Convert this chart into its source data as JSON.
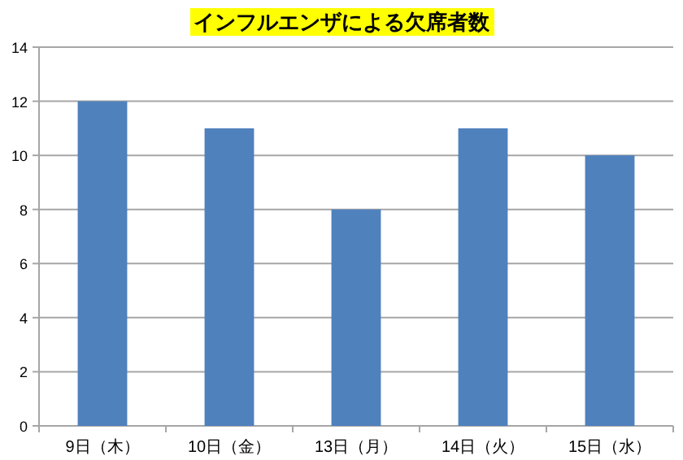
{
  "chart_data": {
    "type": "bar",
    "title": "インフルエンザによる欠席者数",
    "categories": [
      "9日（木）",
      "10日（金）",
      "13日（月）",
      "14日（火）",
      "15日（水）"
    ],
    "values": [
      12,
      11,
      8,
      11,
      10
    ],
    "color": "#4f81bd",
    "ylim": [
      0,
      14
    ],
    "yticks": [
      0,
      2,
      4,
      6,
      8,
      10,
      12,
      14
    ],
    "grid": "y"
  }
}
